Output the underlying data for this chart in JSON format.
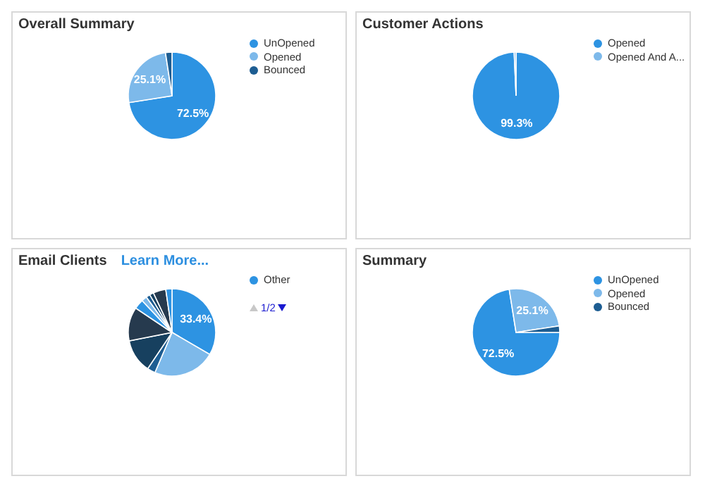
{
  "chart_data": [
    {
      "type": "pie",
      "title": "Overall Summary",
      "categories": [
        "UnOpened",
        "Opened",
        "Bounced"
      ],
      "values": [
        72.5,
        25.1,
        2.4
      ],
      "colors": [
        "#2d93e2",
        "#7db9ea",
        "#1d5d92"
      ],
      "value_labels": [
        "72.5%",
        "25.1%",
        null
      ],
      "legend": "right"
    },
    {
      "type": "pie",
      "title": "Customer Actions",
      "categories": [
        "Opened",
        "Opened And A..."
      ],
      "values": [
        99.3,
        0.7
      ],
      "colors": [
        "#2d93e2",
        "#7db9ea"
      ],
      "value_labels": [
        "99.3%",
        null
      ],
      "legend": "right"
    },
    {
      "type": "pie",
      "title": "Email Clients",
      "annotations": [
        "Learn More...",
        "1/2"
      ],
      "categories": [
        "Other",
        null,
        null,
        null,
        null,
        null,
        null,
        null,
        null,
        null,
        null
      ],
      "values": [
        33.4,
        23,
        3,
        12.5,
        12.5,
        3.6,
        2,
        1.5,
        1.5,
        4.7,
        2.3
      ],
      "colors": [
        "#2d93e2",
        "#7db9ea",
        "#1d5d92",
        "#17405f",
        "#263a4e",
        "#2d93e2",
        "#7db9ea",
        "#1d5d92",
        "#17405f",
        "#263a4e",
        "#2d93e2"
      ],
      "value_labels": [
        "33.4%",
        null,
        null,
        null,
        null,
        null,
        null,
        null,
        null,
        null,
        null
      ],
      "legend": "right"
    },
    {
      "type": "pie",
      "title": "Summary",
      "categories": [
        "UnOpened",
        "Opened",
        "Bounced"
      ],
      "values": [
        72.5,
        25.1,
        2.4
      ],
      "colors": [
        "#2d93e2",
        "#7db9ea",
        "#1d5d92"
      ],
      "value_labels": [
        "72.5%",
        "25.1%",
        null
      ],
      "legend": "right"
    }
  ]
}
